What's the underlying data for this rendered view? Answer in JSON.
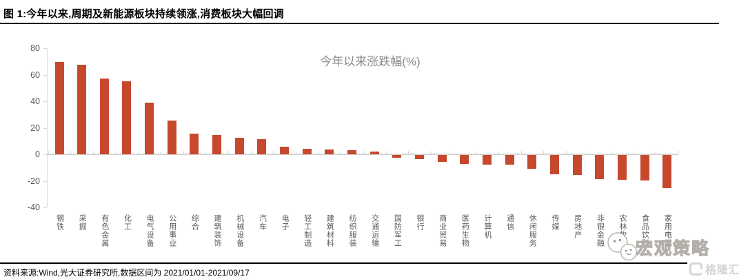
{
  "header": {
    "title": "图 1:今年以来,周期及新能源板块持续领涨,消费板块大幅回调"
  },
  "footer": {
    "source": "资料来源:Wind,光大证券研究所,数据区间为 2021/01/01-2021/09/17"
  },
  "watermark": {
    "text": "宏观策略",
    "logo_text": "格隆汇"
  },
  "chart_data": {
    "type": "bar",
    "title": "今年以来涨跌幅(%)",
    "categories": [
      "钢铁",
      "采掘",
      "有色金属",
      "化工",
      "电气设备",
      "公用事业",
      "综合",
      "建筑装饰",
      "机械设备",
      "汽车",
      "电子",
      "轻工制造",
      "建筑材料",
      "纺织服装",
      "交通运输",
      "国防军工",
      "银行",
      "商业贸易",
      "医药生物",
      "计算机",
      "通信",
      "休闲服务",
      "传媒",
      "房地产",
      "非银金融",
      "农林牧渔",
      "食品饮料",
      "家用电器"
    ],
    "values": [
      69.5,
      67.3,
      57.0,
      55.3,
      38.8,
      25.7,
      15.7,
      14.8,
      12.7,
      11.3,
      5.5,
      4.4,
      3.8,
      3.3,
      1.9,
      -2.2,
      -3.2,
      -5.4,
      -6.6,
      -7.5,
      -7.3,
      -10.6,
      -14.8,
      -15.3,
      -18.3,
      -18.8,
      -19.3,
      -24.9
    ],
    "ylim": [
      -40,
      80
    ],
    "yticks": [
      80,
      60,
      40,
      20,
      0,
      -20,
      -40
    ],
    "unit": "%",
    "bar_color": "#C6492E",
    "axis_color": "#D9D9D9",
    "tick_label_color": "#595959",
    "title_color": "#8A8A8A",
    "grid": false,
    "legend": "none"
  }
}
